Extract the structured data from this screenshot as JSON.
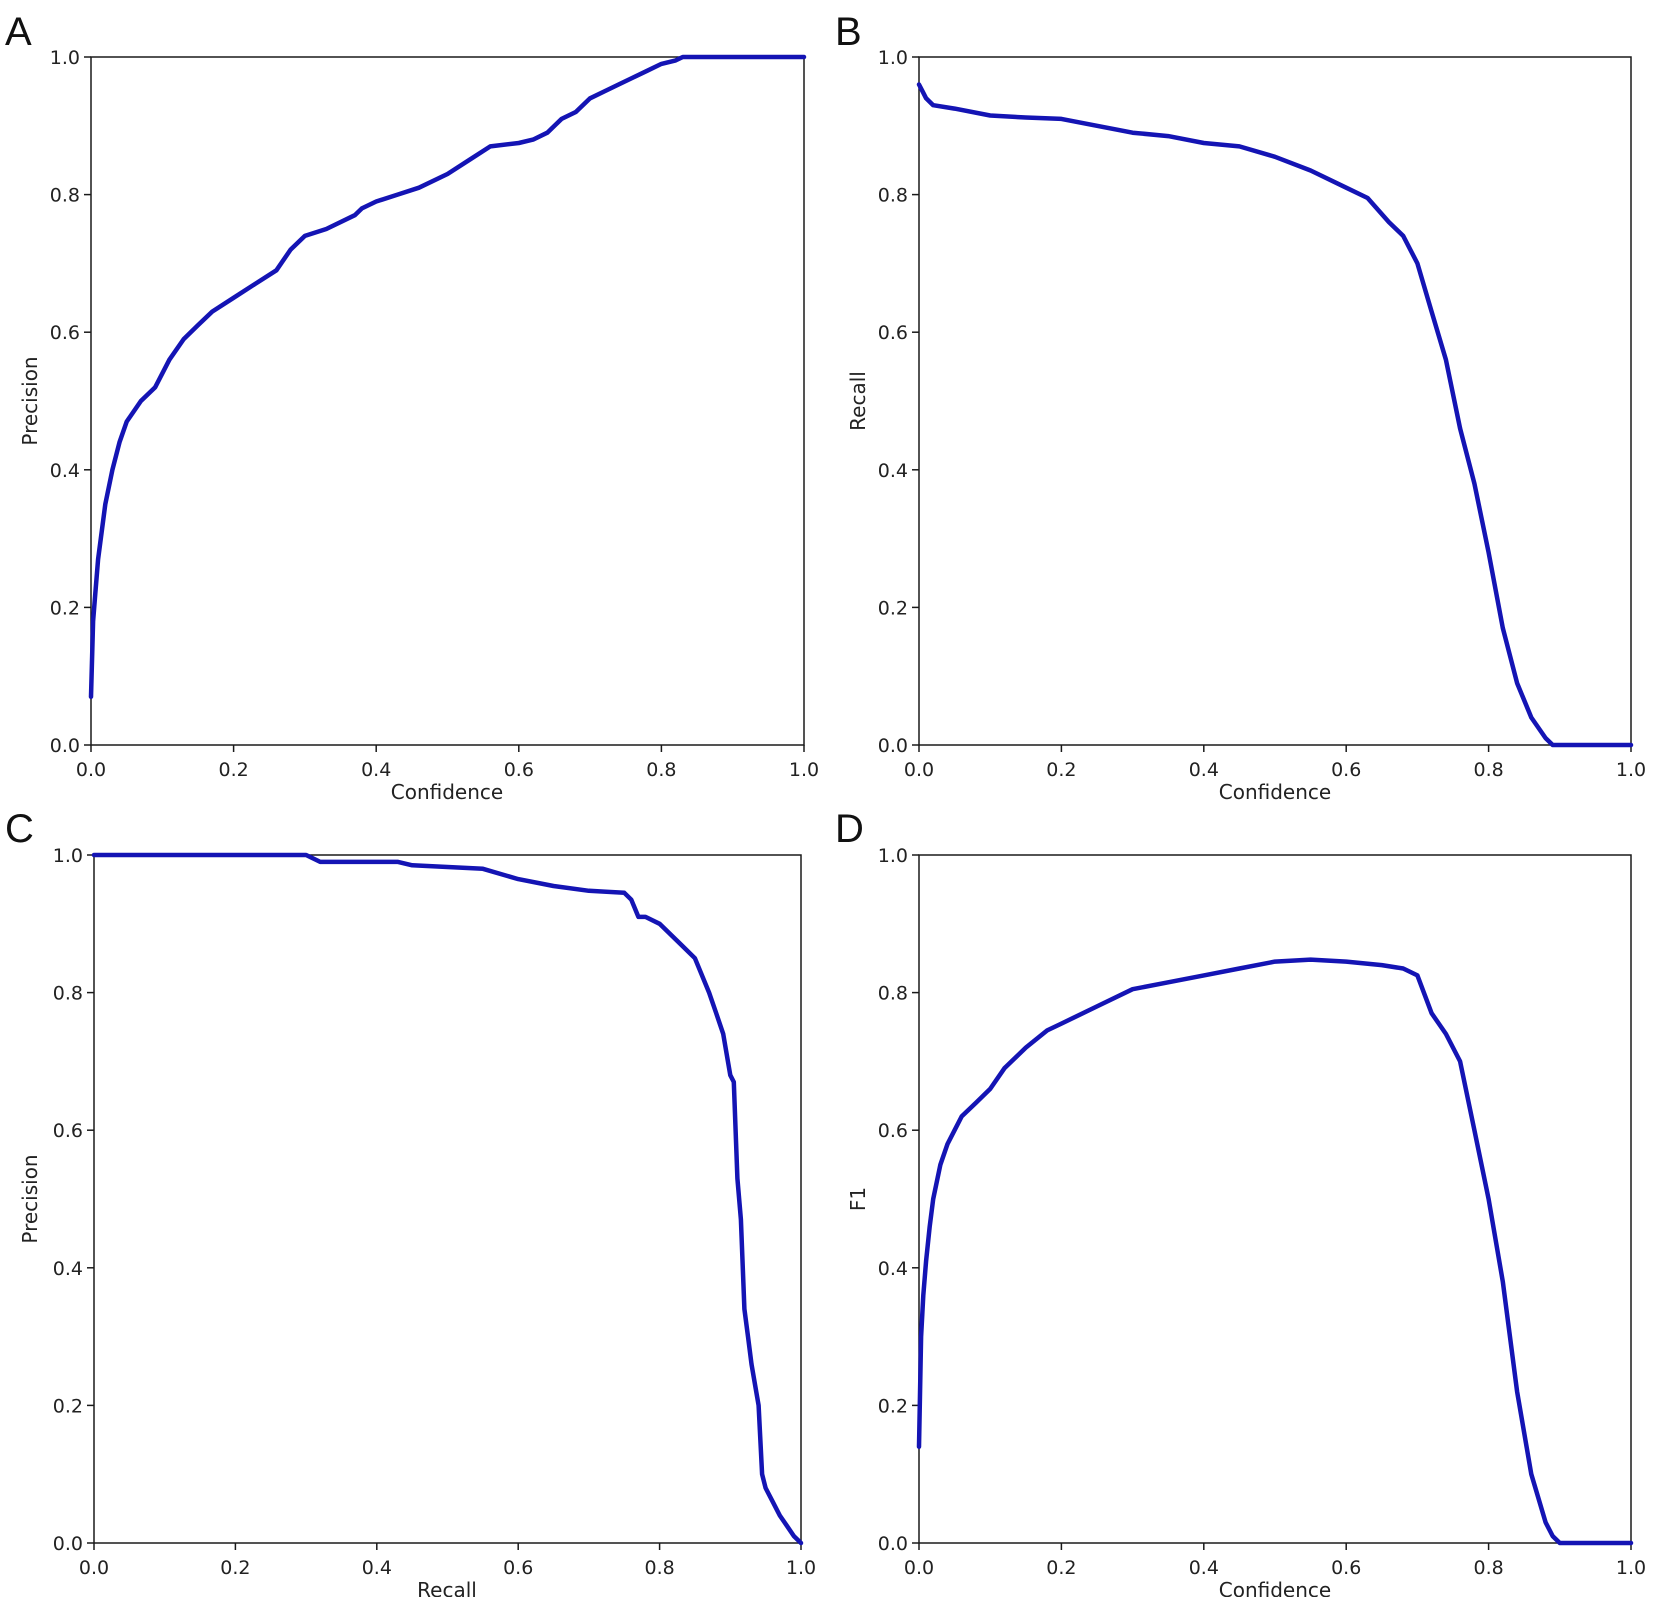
{
  "colors": {
    "curve": "#1414b4"
  },
  "chart_data": [
    {
      "panel": "A",
      "type": "line",
      "xlabel": "Confidence",
      "ylabel": "Precision",
      "xlim": [
        0,
        1
      ],
      "ylim": [
        0,
        1
      ],
      "xticks": [
        "0.0",
        "0.2",
        "0.4",
        "0.6",
        "0.8",
        "1.0"
      ],
      "yticks": [
        "0.0",
        "0.2",
        "0.4",
        "0.6",
        "0.8",
        "1.0"
      ],
      "grid": false,
      "series": [
        {
          "x": [
            0.0,
            0.003,
            0.006,
            0.01,
            0.015,
            0.02,
            0.03,
            0.04,
            0.05,
            0.07,
            0.09,
            0.11,
            0.13,
            0.15,
            0.17,
            0.2,
            0.23,
            0.26,
            0.28,
            0.3,
            0.33,
            0.37,
            0.38,
            0.4,
            0.43,
            0.46,
            0.5,
            0.53,
            0.56,
            0.6,
            0.62,
            0.64,
            0.66,
            0.68,
            0.7,
            0.72,
            0.74,
            0.76,
            0.78,
            0.8,
            0.82,
            0.83,
            1.0
          ],
          "y": [
            0.07,
            0.18,
            0.22,
            0.27,
            0.31,
            0.35,
            0.4,
            0.44,
            0.47,
            0.5,
            0.52,
            0.56,
            0.59,
            0.61,
            0.63,
            0.65,
            0.67,
            0.69,
            0.72,
            0.74,
            0.75,
            0.77,
            0.78,
            0.79,
            0.8,
            0.81,
            0.83,
            0.85,
            0.87,
            0.875,
            0.88,
            0.89,
            0.91,
            0.92,
            0.94,
            0.95,
            0.96,
            0.97,
            0.98,
            0.99,
            0.995,
            1.0,
            1.0
          ]
        }
      ]
    },
    {
      "panel": "B",
      "type": "line",
      "xlabel": "Confidence",
      "ylabel": "Recall",
      "xlim": [
        0,
        1
      ],
      "ylim": [
        0,
        1
      ],
      "xticks": [
        "0.0",
        "0.2",
        "0.4",
        "0.6",
        "0.8",
        "1.0"
      ],
      "yticks": [
        "0.0",
        "0.2",
        "0.4",
        "0.6",
        "0.8",
        "1.0"
      ],
      "grid": false,
      "series": [
        {
          "x": [
            0.0,
            0.005,
            0.01,
            0.02,
            0.05,
            0.1,
            0.15,
            0.2,
            0.25,
            0.3,
            0.35,
            0.4,
            0.45,
            0.5,
            0.55,
            0.6,
            0.63,
            0.66,
            0.68,
            0.7,
            0.72,
            0.74,
            0.76,
            0.78,
            0.8,
            0.82,
            0.84,
            0.86,
            0.88,
            0.89,
            0.9,
            1.0
          ],
          "y": [
            0.96,
            0.95,
            0.94,
            0.93,
            0.925,
            0.915,
            0.912,
            0.91,
            0.9,
            0.89,
            0.885,
            0.875,
            0.87,
            0.855,
            0.835,
            0.81,
            0.795,
            0.76,
            0.74,
            0.7,
            0.63,
            0.56,
            0.46,
            0.38,
            0.28,
            0.17,
            0.09,
            0.04,
            0.01,
            0.0,
            0.0,
            0.0
          ]
        }
      ]
    },
    {
      "panel": "C",
      "type": "line",
      "xlabel": "Recall",
      "ylabel": "Precision",
      "xlim": [
        0,
        1
      ],
      "ylim": [
        0,
        1
      ],
      "xticks": [
        "0.0",
        "0.2",
        "0.4",
        "0.6",
        "0.8",
        "1.0"
      ],
      "yticks": [
        "0.0",
        "0.2",
        "0.4",
        "0.6",
        "0.8",
        "1.0"
      ],
      "grid": false,
      "series": [
        {
          "x": [
            0.0,
            0.3,
            0.32,
            0.43,
            0.45,
            0.55,
            0.6,
            0.65,
            0.7,
            0.75,
            0.76,
            0.77,
            0.78,
            0.8,
            0.83,
            0.85,
            0.87,
            0.88,
            0.89,
            0.9,
            0.905,
            0.91,
            0.915,
            0.92,
            0.925,
            0.93,
            0.94,
            0.945,
            0.95,
            0.96,
            0.97,
            0.98,
            0.99,
            1.0
          ],
          "y": [
            1.0,
            1.0,
            0.99,
            0.99,
            0.985,
            0.98,
            0.965,
            0.955,
            0.948,
            0.945,
            0.935,
            0.91,
            0.91,
            0.9,
            0.87,
            0.85,
            0.8,
            0.77,
            0.74,
            0.68,
            0.67,
            0.53,
            0.47,
            0.34,
            0.3,
            0.26,
            0.2,
            0.1,
            0.08,
            0.06,
            0.04,
            0.025,
            0.01,
            0.0
          ]
        }
      ]
    },
    {
      "panel": "D",
      "type": "line",
      "xlabel": "Confidence",
      "ylabel": "F1",
      "xlim": [
        0,
        1
      ],
      "ylim": [
        0,
        1
      ],
      "xticks": [
        "0.0",
        "0.2",
        "0.4",
        "0.6",
        "0.8",
        "1.0"
      ],
      "yticks": [
        "0.0",
        "0.2",
        "0.4",
        "0.6",
        "0.8",
        "1.0"
      ],
      "grid": false,
      "series": [
        {
          "x": [
            0.0,
            0.003,
            0.006,
            0.01,
            0.015,
            0.02,
            0.03,
            0.04,
            0.05,
            0.06,
            0.08,
            0.1,
            0.12,
            0.15,
            0.18,
            0.2,
            0.25,
            0.3,
            0.35,
            0.4,
            0.45,
            0.5,
            0.55,
            0.6,
            0.65,
            0.68,
            0.7,
            0.72,
            0.74,
            0.76,
            0.78,
            0.8,
            0.82,
            0.84,
            0.86,
            0.88,
            0.89,
            0.9,
            1.0
          ],
          "y": [
            0.14,
            0.3,
            0.36,
            0.41,
            0.46,
            0.5,
            0.55,
            0.58,
            0.6,
            0.62,
            0.64,
            0.66,
            0.69,
            0.72,
            0.745,
            0.755,
            0.78,
            0.805,
            0.815,
            0.825,
            0.835,
            0.845,
            0.848,
            0.845,
            0.84,
            0.835,
            0.825,
            0.77,
            0.74,
            0.7,
            0.6,
            0.5,
            0.38,
            0.22,
            0.1,
            0.03,
            0.01,
            0.0,
            0.0
          ]
        }
      ]
    }
  ]
}
